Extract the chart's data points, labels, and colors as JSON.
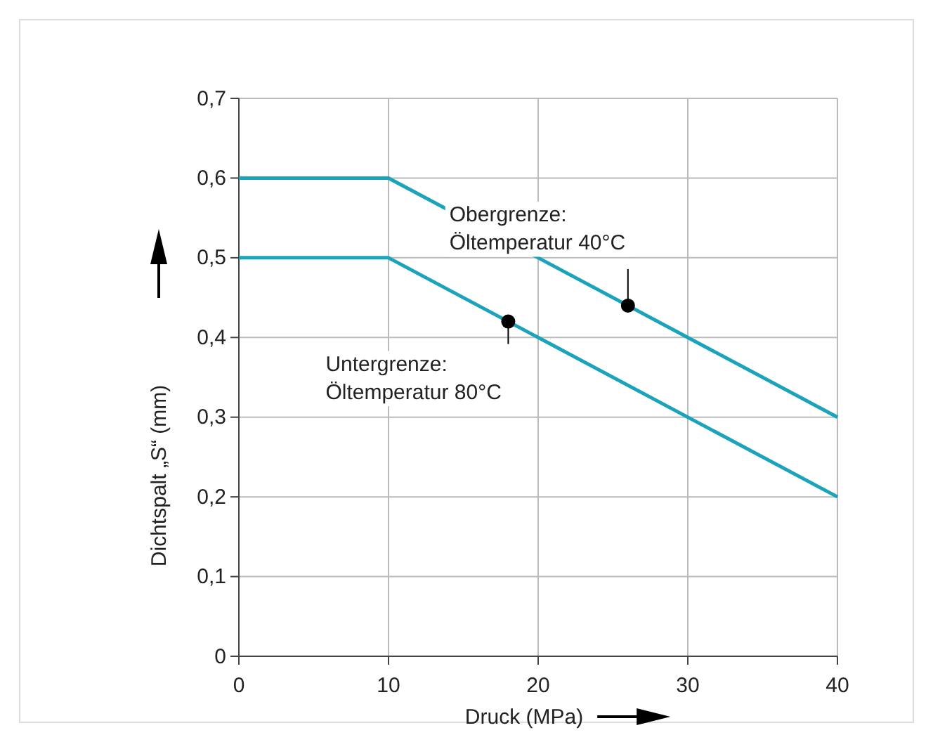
{
  "chart_data": {
    "type": "line",
    "xlabel": "Druck (MPa)",
    "ylabel": "Dichtspalt „S“ (mm)",
    "series": [
      {
        "color": "#1ba3bb",
        "x": [
          0,
          10,
          40
        ],
        "values": [
          0.6,
          0.6,
          0.3
        ]
      },
      {
        "color": "#1ba3bb",
        "x": [
          0,
          10,
          40
        ],
        "values": [
          0.5,
          0.5,
          0.2
        ]
      }
    ],
    "xlim": [
      0,
      40
    ],
    "xticks": [
      0,
      10,
      20,
      30,
      40
    ],
    "ylim": [
      0,
      0.7
    ],
    "yticks": [
      0,
      {
        "value": 0.1,
        "label": "0,1"
      },
      {
        "value": 0.2,
        "label": "0,2"
      },
      {
        "value": 0.3,
        "label": "0,3"
      },
      {
        "value": 0.4,
        "label": "0,4"
      },
      {
        "value": 0.5,
        "label": "0,5"
      },
      {
        "value": 0.6,
        "label": "0,6"
      },
      {
        "value": 0.7,
        "label": "0,7"
      }
    ],
    "grid": true,
    "marker": "none",
    "line_style": "solid",
    "annotations": [
      {
        "text": "Obergrenze:\nÖltemperatur 40°C",
        "x": 26,
        "y": 0.44
      },
      {
        "text": "Untergrenze:\nÖltemperatur 80°C",
        "x": 18,
        "y": 0.42
      }
    ]
  }
}
